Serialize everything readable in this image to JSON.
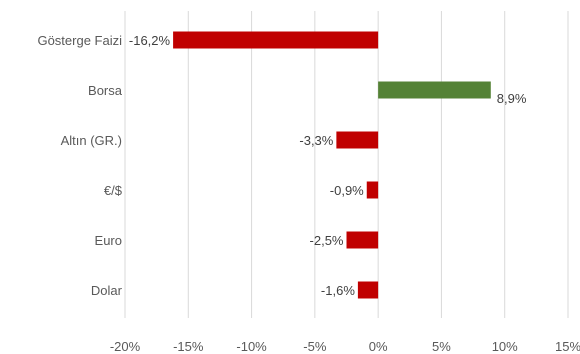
{
  "chart_data": {
    "type": "bar",
    "orientation": "horizontal",
    "categories": [
      "Gösterge Faizi",
      "Borsa",
      "Altın (GR.)",
      "€/$",
      "Euro",
      "Dolar"
    ],
    "values": [
      -16.2,
      8.9,
      -3.3,
      -0.9,
      -2.5,
      -1.6
    ],
    "data_labels": [
      "-16,2%",
      "8,9%",
      "-3,3%",
      "-0,9%",
      "-2,5%",
      "-1,6%"
    ],
    "xticks": [
      -20,
      -15,
      -10,
      -5,
      0,
      5,
      10,
      15
    ],
    "xtick_labels": [
      "-20%",
      "-15%",
      "-10%",
      "-5%",
      "0%",
      "5%",
      "10%",
      "15%"
    ],
    "xlim": [
      -20,
      15
    ],
    "title": "",
    "xlabel": "",
    "ylabel": "",
    "grid": "vertical",
    "legend": "none",
    "colors": {
      "negative": "#c00000",
      "positive": "#548235",
      "grid": "#d9d9d9",
      "text": "#595959"
    }
  }
}
